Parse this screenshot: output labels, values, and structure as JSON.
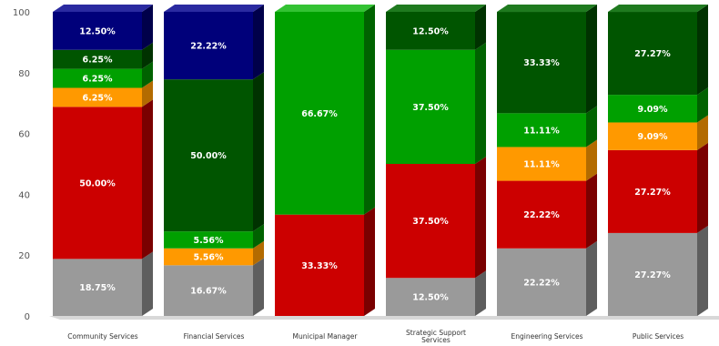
{
  "chart_data": {
    "type": "bar",
    "stacked": true,
    "three_d": true,
    "percent_stacked": true,
    "grid": false,
    "ylim": [
      0,
      100
    ],
    "yticks": [
      "0",
      "20",
      "40",
      "60",
      "80",
      "100"
    ],
    "categories": [
      "Community Services",
      "Financial Services",
      "Municipal Manager",
      "Strategic Support Services",
      "Engineering Services",
      "Public Services"
    ],
    "series": [
      {
        "color": "#9a9a9a",
        "side_color": "#5e5e5e",
        "top_color": "#c4c4c4",
        "values": [
          18.75,
          16.67,
          0,
          12.5,
          22.22,
          27.27
        ],
        "labels": [
          "18.75%",
          "16.67%",
          "",
          "12.50%",
          "22.22%",
          "27.27%"
        ]
      },
      {
        "color": "#cc0000",
        "side_color": "#7a0000",
        "top_color": "#e64a4a",
        "values": [
          50.0,
          0,
          33.33,
          37.5,
          22.22,
          27.27
        ],
        "labels": [
          "50.00%",
          "",
          "33.33%",
          "37.50%",
          "22.22%",
          "27.27%"
        ]
      },
      {
        "color": "#ff9900",
        "side_color": "#b36b00",
        "top_color": "#ffbb55",
        "values": [
          6.25,
          5.56,
          0,
          0,
          11.11,
          9.09
        ],
        "labels": [
          "6.25%",
          "5.56%",
          "",
          "",
          "11.11%",
          "9.09%"
        ]
      },
      {
        "color": "#00a000",
        "side_color": "#006200",
        "top_color": "#33c233",
        "values": [
          6.25,
          5.56,
          66.67,
          37.5,
          11.11,
          9.09
        ],
        "labels": [
          "6.25%",
          "5.56%",
          "66.67%",
          "37.50%",
          "11.11%",
          "9.09%"
        ]
      },
      {
        "color": "#005500",
        "side_color": "#003200",
        "top_color": "#1f7a1f",
        "values": [
          6.25,
          50.0,
          0,
          12.5,
          33.33,
          27.27
        ],
        "labels": [
          "6.25%",
          "50.00%",
          "",
          "12.50%",
          "33.33%",
          "27.27%"
        ]
      },
      {
        "color": "#00007a",
        "side_color": "#00004a",
        "top_color": "#2a2aa0",
        "values": [
          12.5,
          22.22,
          0,
          0,
          0,
          0
        ],
        "labels": [
          "12.50%",
          "22.22%",
          "",
          "",
          "",
          ""
        ]
      }
    ]
  }
}
